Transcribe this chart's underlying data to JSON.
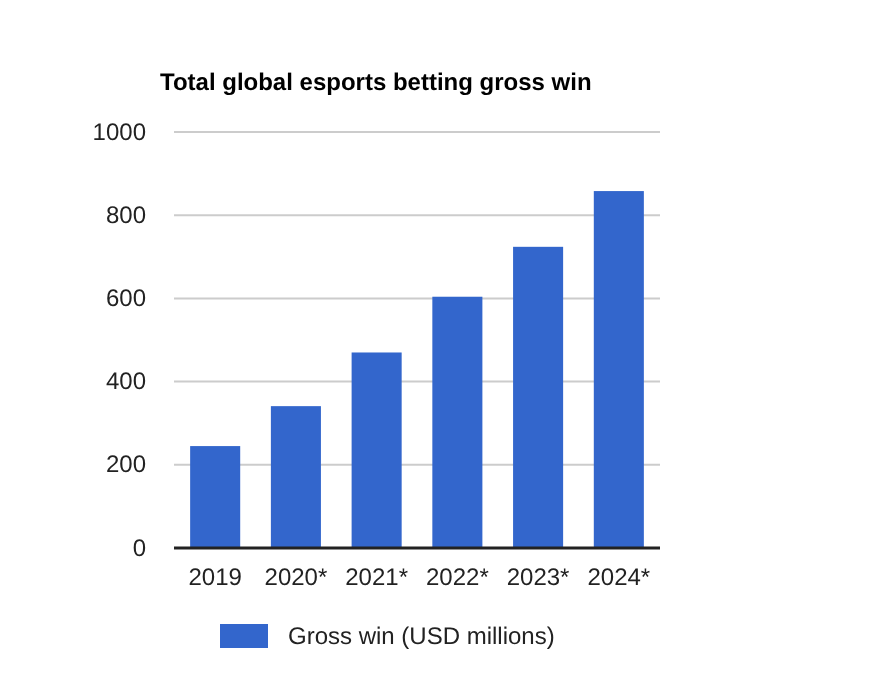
{
  "chart_data": {
    "type": "bar",
    "title": "Total global esports betting gross win",
    "categories": [
      "2019",
      "2020*",
      "2021*",
      "2022*",
      "2023*",
      "2024*"
    ],
    "series": [
      {
        "name": "Gross win (USD millions)",
        "color": "#3366cc",
        "values": [
          245,
          341,
          470,
          604,
          724,
          858
        ]
      }
    ],
    "ylim": [
      0,
      1000
    ],
    "yticks": [
      0,
      200,
      400,
      600,
      800,
      1000
    ],
    "grid": "y",
    "legend": "bottom"
  }
}
